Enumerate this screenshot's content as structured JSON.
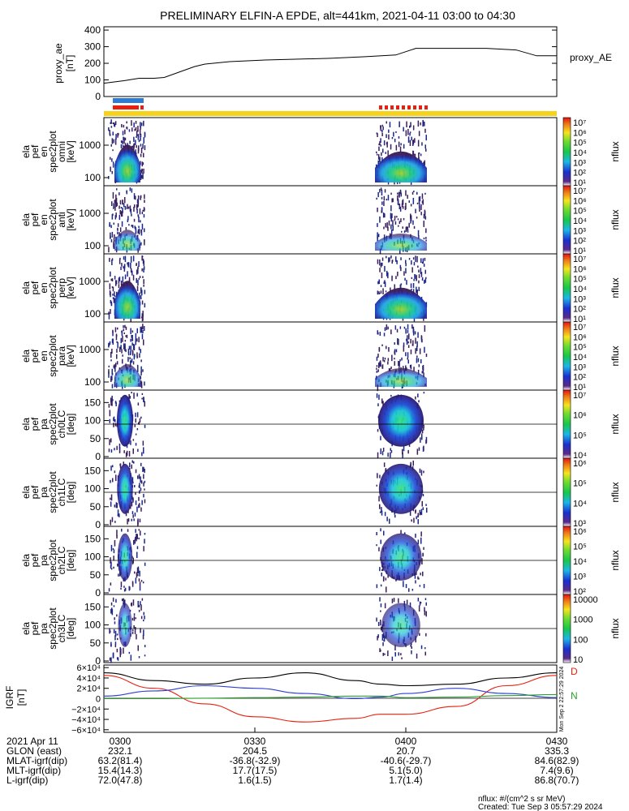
{
  "title": "PRELIMINARY ELFIN-A EPDE, alt=441km, 2021-04-11 03:00 to 04:30",
  "time_axis": {
    "start_min": 0,
    "end_min": 90,
    "ticks": [
      0,
      30,
      60,
      90
    ]
  },
  "ae_panel": {
    "ylabel": "proxy_ae [nT]",
    "ylabel_lines": [
      "proxy_ae",
      "[nT]"
    ],
    "series_name": "proxy_AE",
    "yticks": [
      "0",
      "100",
      "200",
      "300",
      "400"
    ],
    "ylim": [
      0,
      420
    ]
  },
  "spec_panels": [
    {
      "ylines": [
        "ela",
        "pef",
        "en",
        "spec2plot",
        "omni",
        "[keV]"
      ],
      "ytick_labels": [
        "1000",
        "100"
      ],
      "cb_labels": [
        "10⁷",
        "10⁶",
        "10⁵",
        "10⁴",
        "10³",
        "10²",
        "10¹"
      ],
      "cb_title": "nflux"
    },
    {
      "ylines": [
        "ela",
        "pef",
        "en",
        "spec2plot",
        "anti",
        "[keV]"
      ],
      "ytick_labels": [
        "1000",
        "100"
      ],
      "cb_labels": [
        "10⁷",
        "10⁶",
        "10⁵",
        "10⁴",
        "10³",
        "10²",
        "10¹"
      ],
      "cb_title": "nflux"
    },
    {
      "ylines": [
        "ela",
        "pef",
        "en",
        "spec2plot",
        "perp",
        "[keV]"
      ],
      "ytick_labels": [
        "1000",
        "100"
      ],
      "cb_labels": [
        "10⁷",
        "10⁶",
        "10⁵",
        "10⁴",
        "10³",
        "10²",
        "10¹"
      ],
      "cb_title": "nflux"
    },
    {
      "ylines": [
        "ela",
        "pef",
        "en",
        "spec2plot",
        "para",
        "[keV]"
      ],
      "ytick_labels": [
        "1000",
        "100"
      ],
      "cb_labels": [
        "10⁷",
        "10⁶",
        "10⁵",
        "10⁴",
        "10³",
        "10²",
        "10¹"
      ],
      "cb_title": "nflux"
    },
    {
      "ylines": [
        "ela",
        "pef",
        "pa",
        "spec2plot",
        "ch0LC",
        "[deg]"
      ],
      "ytick_labels": [
        "150",
        "100",
        "50",
        "0"
      ],
      "cb_labels": [
        "10⁷",
        "10⁶",
        "10⁵",
        "10⁴"
      ],
      "cb_title": "nflux"
    },
    {
      "ylines": [
        "ela",
        "pef",
        "pa",
        "spec2plot",
        "ch1LC",
        "[deg]"
      ],
      "ytick_labels": [
        "150",
        "100",
        "50",
        "0"
      ],
      "cb_labels": [
        "10⁶",
        "10⁵",
        "10⁴",
        "10³"
      ],
      "cb_title": "nflux"
    },
    {
      "ylines": [
        "ela",
        "pef",
        "pa",
        "spec2plot",
        "ch2LC",
        "[deg]"
      ],
      "ytick_labels": [
        "150",
        "100",
        "50",
        "0"
      ],
      "cb_labels": [
        "10⁶",
        "10⁵",
        "10⁴",
        "10³",
        "10²"
      ],
      "cb_title": "nflux"
    },
    {
      "ylines": [
        "ela",
        "pef",
        "pa",
        "spec2plot",
        "ch3LC",
        "[deg]"
      ],
      "ytick_labels": [
        "150",
        "100",
        "50",
        "0"
      ],
      "cb_labels": [
        "10000",
        "1000",
        "100",
        "10"
      ],
      "cb_title": "nflux"
    }
  ],
  "igrf_panel": {
    "ylabel_lines": [
      "IGRF",
      "[nT]"
    ],
    "yticks": [
      "6×10⁴",
      "4×10⁴",
      "2×10⁴",
      "0",
      "−2×10⁴",
      "−4×10⁴",
      "−6×10⁴"
    ],
    "components": [
      "D",
      "N"
    ],
    "side_stamp": "Mon Sep  2 22:57:29 2024"
  },
  "chart_data": [
    {
      "type": "line",
      "name": "proxy_ae",
      "x": [
        0,
        4,
        7,
        10,
        12,
        18,
        20,
        25,
        32,
        45,
        52,
        58,
        62,
        66,
        70,
        76,
        82,
        86,
        90
      ],
      "y": [
        80,
        95,
        110,
        110,
        115,
        180,
        195,
        210,
        220,
        230,
        240,
        250,
        290,
        290,
        290,
        290,
        280,
        245,
        245
      ],
      "xlabel": "",
      "ylabel": "proxy_ae [nT]",
      "ylim": [
        0,
        420
      ]
    },
    {
      "type": "line",
      "name": "IGRF",
      "x": [
        0,
        10,
        20,
        30,
        40,
        50,
        55,
        60,
        70,
        80,
        90
      ],
      "series": [
        {
          "name": "black",
          "values": [
            50000,
            35000,
            28000,
            40000,
            50000,
            35000,
            28000,
            25000,
            28000,
            40000,
            50000
          ]
        },
        {
          "name": "D",
          "values": [
            45000,
            20000,
            -10000,
            -35000,
            -45000,
            -38000,
            -30000,
            -30000,
            -15000,
            25000,
            45000
          ]
        },
        {
          "name": "blue",
          "values": [
            5000,
            15000,
            25000,
            20000,
            10000,
            0,
            3000,
            10000,
            20000,
            10000,
            2000
          ]
        },
        {
          "name": "N",
          "values": [
            0,
            0,
            1000,
            2000,
            3000,
            5000,
            5000,
            2000,
            3000,
            6000,
            8000
          ]
        }
      ],
      "ylim": [
        -65000,
        65000
      ]
    }
  ],
  "orbit_table": {
    "rows": [
      {
        "label": "2021 Apr 11",
        "values": [
          "0300",
          "0330",
          "0400",
          "0430"
        ]
      },
      {
        "label": "GLON (east)",
        "values": [
          "232.1",
          "204.5",
          "20.7",
          "335.3"
        ]
      },
      {
        "label": "MLAT-igrf(dip)",
        "values": [
          "63.2(81.4)",
          "-36.8(-32.9)",
          "-40.6(-29.7)",
          "84.6(82.9)"
        ]
      },
      {
        "label": "MLT-igrf(dip)",
        "values": [
          "15.4(14.3)",
          "17.7(17.5)",
          "5.1(5.0)",
          "7.4(9.6)"
        ]
      },
      {
        "label": "L-igrf(dip)",
        "values": [
          "72.0(47.8)",
          "1.6(1.5)",
          "1.7(1.4)",
          "86.8(70.7)"
        ]
      }
    ]
  },
  "footer": {
    "units": "nflux: #/(cm^2 s sr MeV)",
    "created": "Created: Tue Sep  3 05:57:29 2024"
  },
  "colors": {
    "red": "#e8210f",
    "blue": "#2e7cd6",
    "yellow": "#f7d21b",
    "black": "#000000",
    "green": "#2ca02c"
  }
}
